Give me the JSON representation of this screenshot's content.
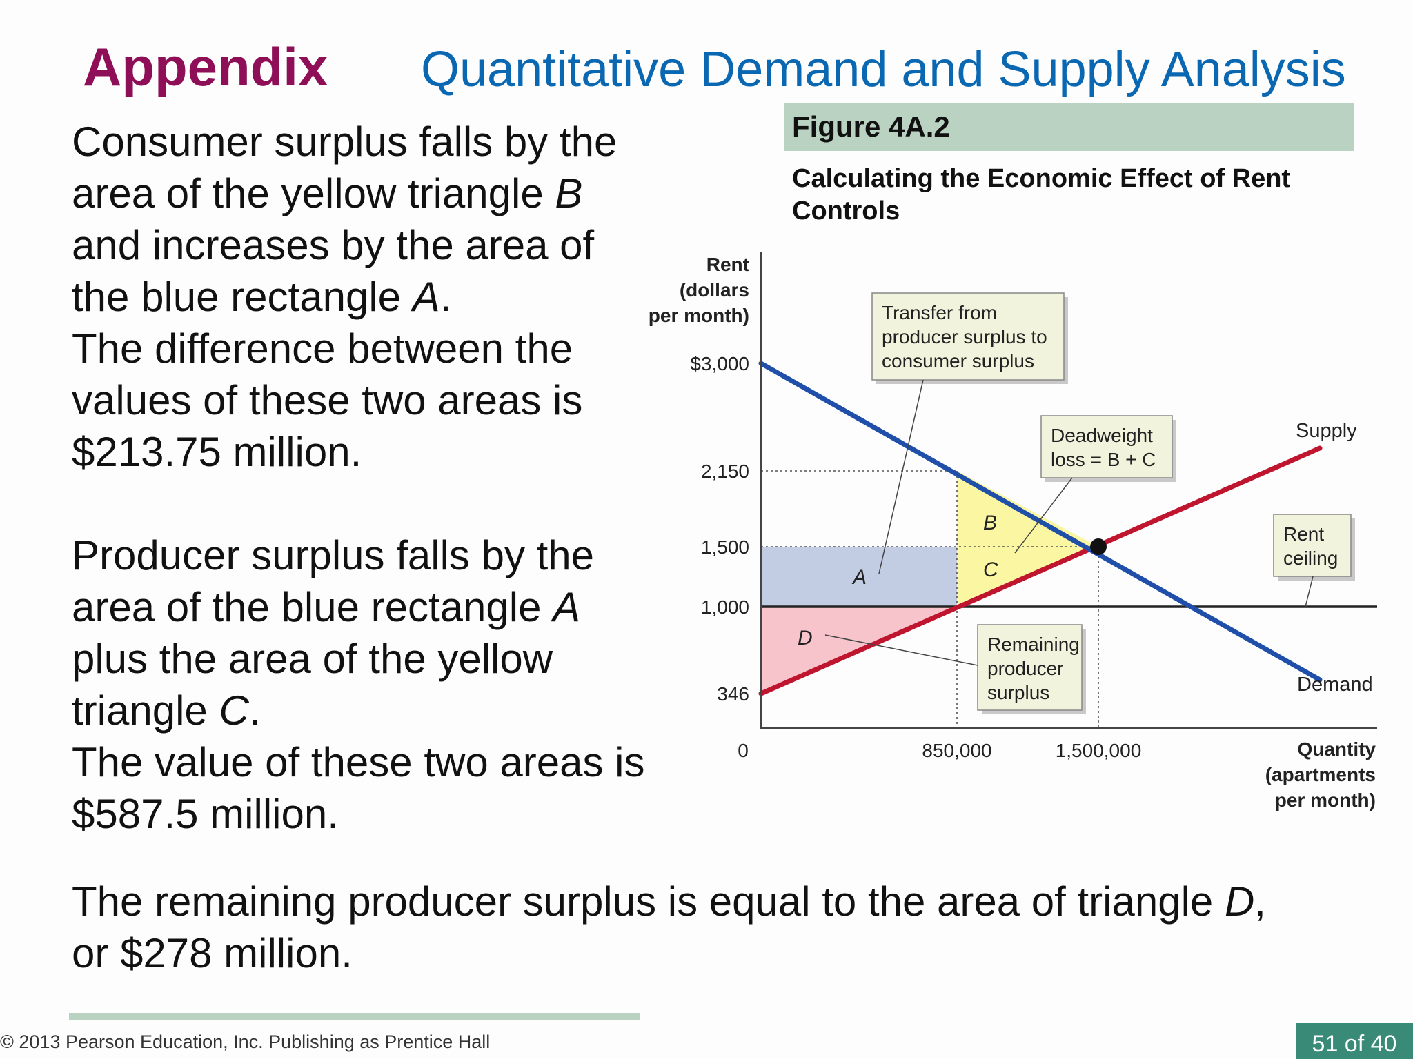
{
  "slide": {
    "section": "Appendix",
    "title": "Quantitative Demand and Supply Analysis"
  },
  "body": {
    "p1_a": "Consumer surplus falls by the area of the yellow triangle ",
    "p1_b": "B",
    "p1_c": " and increases by the area of the blue rectangle ",
    "p1_d": "A",
    "p1_e": ".",
    "p2": "The difference between the values of these two areas is $213.75 million.",
    "p3_a": "Producer surplus falls by the area of the blue rectangle ",
    "p3_b": "A",
    "p3_c": " plus the area of the yellow triangle ",
    "p3_d": "C",
    "p3_e": ".",
    "p4": "The value of these two areas is $587.5 million.",
    "p5_a": "The remaining producer surplus is equal to the area of triangle ",
    "p5_b": "D",
    "p5_c": ", or $278 million."
  },
  "figure": {
    "number": "Figure 4A.2",
    "caption": "Calculating the Economic Effect of Rent Controls"
  },
  "chart_data": {
    "type": "line",
    "ylabel": [
      "Rent",
      "(dollars",
      "per month)"
    ],
    "xlabel": [
      "Quantity",
      "(apartments",
      "per month)"
    ],
    "y_ticks": [
      {
        "value": 3000,
        "label": "$3,000"
      },
      {
        "value": 2150,
        "label": "2,150"
      },
      {
        "value": 1500,
        "label": "1,500"
      },
      {
        "value": 1000,
        "label": "1,000"
      },
      {
        "value": 346,
        "label": "346"
      }
    ],
    "x_ticks": [
      {
        "value": 850000,
        "label": "850,000"
      },
      {
        "value": 1500000,
        "label": "1,500,000"
      }
    ],
    "origin_label": "0",
    "series": [
      {
        "name": "Demand",
        "color": "#1f4fa8",
        "points": [
          [
            0,
            3000
          ],
          [
            850000,
            2150
          ],
          [
            1500000,
            1500
          ],
          [
            2550000,
            450
          ]
        ]
      },
      {
        "name": "Supply",
        "color": "#c0152f",
        "points": [
          [
            0,
            346
          ],
          [
            850000,
            1000
          ],
          [
            1500000,
            1500
          ],
          [
            2550000,
            2330
          ]
        ]
      }
    ],
    "rent_ceiling": {
      "value": 1000,
      "label_lines": [
        "Rent",
        "ceiling"
      ]
    },
    "equilibrium": {
      "x": 1500000,
      "y": 1500
    },
    "areas": [
      {
        "label": "A",
        "color": "#c2cce2"
      },
      {
        "label": "B",
        "color": "#fbf6a2"
      },
      {
        "label": "C",
        "color": "#fbf6a2"
      },
      {
        "label": "D",
        "color": "#f7c4cb"
      }
    ],
    "callouts": {
      "transfer": [
        "Transfer from",
        "producer surplus to",
        "consumer surplus"
      ],
      "deadweight": [
        "Deadweight",
        "loss = B + C"
      ],
      "remaining": [
        "Remaining",
        "producer",
        "surplus"
      ]
    }
  },
  "footer": {
    "copyright": "© 2013 Pearson Education, Inc. Publishing as Prentice Hall",
    "page": "51 of 40"
  }
}
